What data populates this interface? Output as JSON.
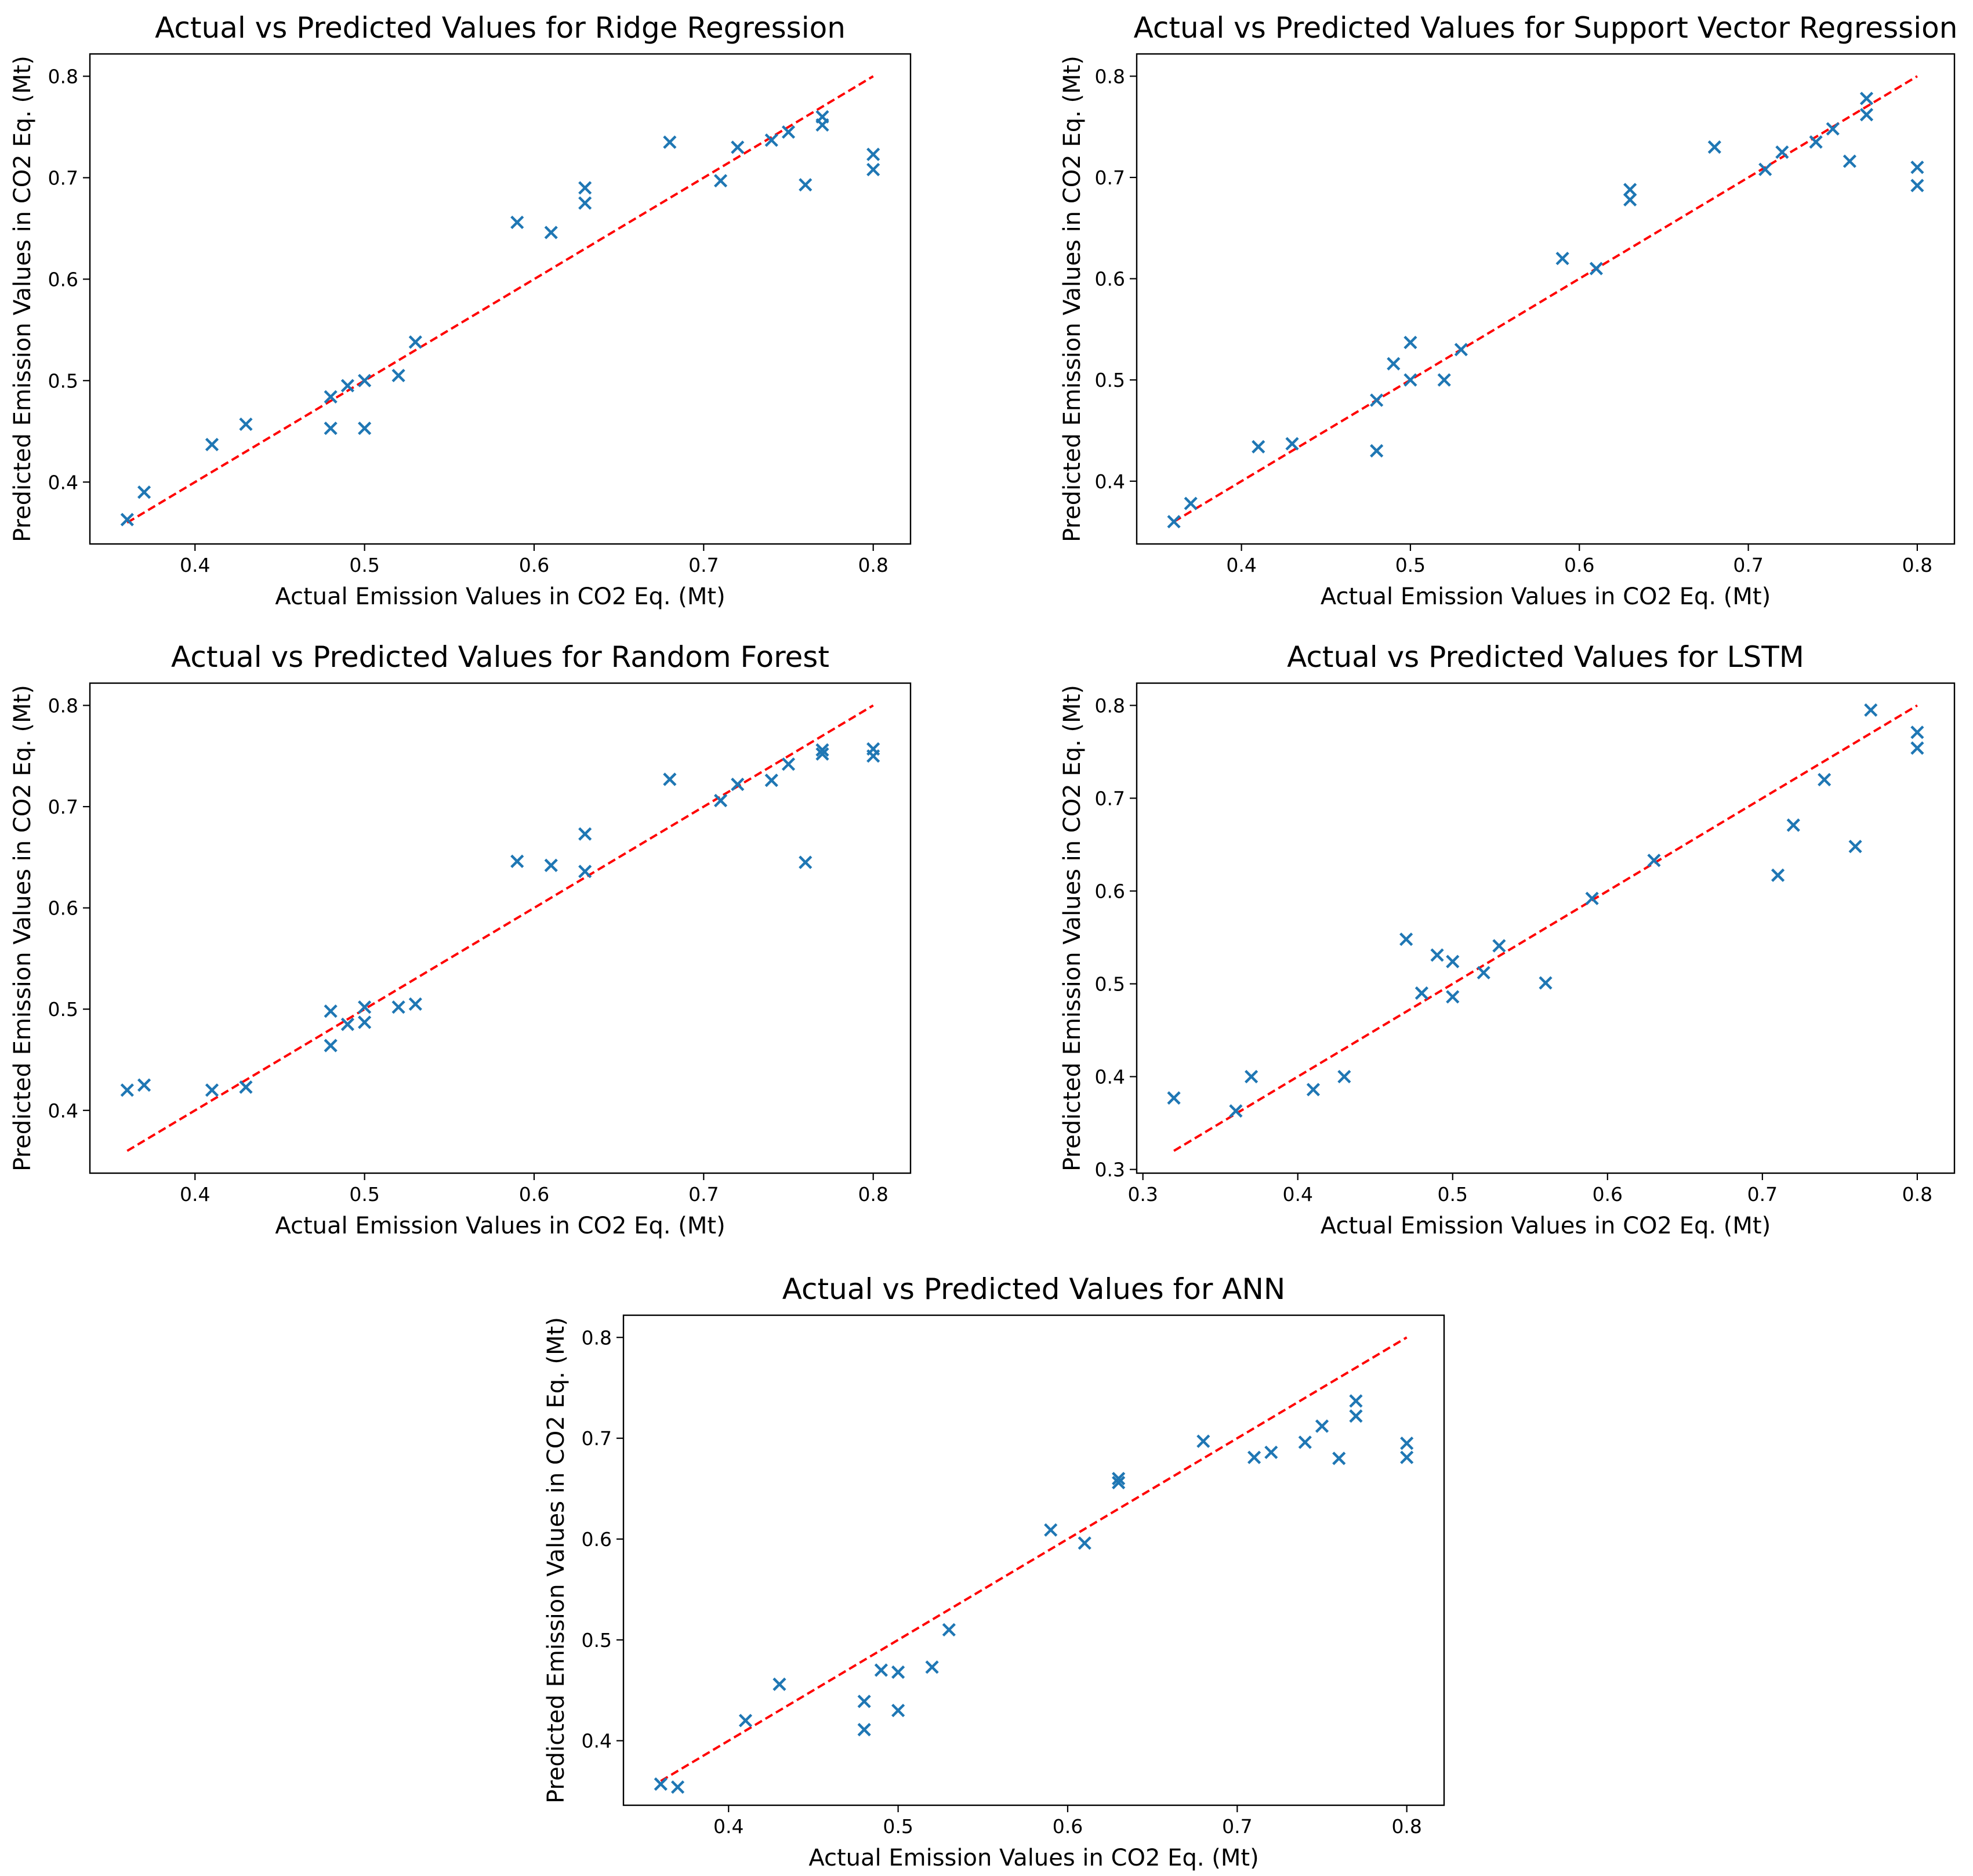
{
  "colors": {
    "marker": "#1f77b4",
    "reference_line": "#ff0000"
  },
  "chart_data": [
    {
      "type": "scatter",
      "title": "Actual vs Predicted Values for Ridge Regression",
      "xlabel": "Actual Emission Values in CO2 Eq. (Mt)",
      "ylabel": "Predicted Emission Values in CO2 Eq. (Mt)",
      "xlim": [
        0.338,
        0.822
      ],
      "ylim": [
        0.339,
        0.822
      ],
      "xticks": [
        0.4,
        0.5,
        0.6,
        0.7,
        0.8
      ],
      "xtick_labels": [
        "0.4",
        "0.5",
        "0.6",
        "0.7",
        "0.8"
      ],
      "yticks": [
        0.4,
        0.5,
        0.6,
        0.7,
        0.8
      ],
      "ytick_labels": [
        "0.4",
        "0.5",
        "0.6",
        "0.7",
        "0.8"
      ],
      "reference_line": [
        [
          0.36,
          0.36
        ],
        [
          0.8,
          0.8
        ]
      ],
      "points": [
        [
          0.36,
          0.363
        ],
        [
          0.37,
          0.39
        ],
        [
          0.41,
          0.437
        ],
        [
          0.43,
          0.457
        ],
        [
          0.48,
          0.484
        ],
        [
          0.48,
          0.453
        ],
        [
          0.49,
          0.495
        ],
        [
          0.5,
          0.5
        ],
        [
          0.5,
          0.453
        ],
        [
          0.52,
          0.505
        ],
        [
          0.53,
          0.538
        ],
        [
          0.59,
          0.656
        ],
        [
          0.61,
          0.646
        ],
        [
          0.63,
          0.69
        ],
        [
          0.63,
          0.675
        ],
        [
          0.68,
          0.735
        ],
        [
          0.71,
          0.697
        ],
        [
          0.72,
          0.73
        ],
        [
          0.74,
          0.737
        ],
        [
          0.75,
          0.745
        ],
        [
          0.76,
          0.693
        ],
        [
          0.77,
          0.76
        ],
        [
          0.77,
          0.752
        ],
        [
          0.8,
          0.723
        ],
        [
          0.8,
          0.708
        ]
      ]
    },
    {
      "type": "scatter",
      "title": "Actual vs Predicted Values for Support Vector Regression",
      "xlabel": "Actual Emission Values in CO2 Eq. (Mt)",
      "ylabel": "Predicted Emission Values in CO2 Eq. (Mt)",
      "xlim": [
        0.338,
        0.822
      ],
      "ylim": [
        0.338,
        0.822
      ],
      "xticks": [
        0.4,
        0.5,
        0.6,
        0.7,
        0.8
      ],
      "xtick_labels": [
        "0.4",
        "0.5",
        "0.6",
        "0.7",
        "0.8"
      ],
      "yticks": [
        0.4,
        0.5,
        0.6,
        0.7,
        0.8
      ],
      "ytick_labels": [
        "0.4",
        "0.5",
        "0.6",
        "0.7",
        "0.8"
      ],
      "reference_line": [
        [
          0.36,
          0.36
        ],
        [
          0.8,
          0.8
        ]
      ],
      "points": [
        [
          0.36,
          0.36
        ],
        [
          0.37,
          0.378
        ],
        [
          0.41,
          0.434
        ],
        [
          0.43,
          0.437
        ],
        [
          0.48,
          0.48
        ],
        [
          0.48,
          0.43
        ],
        [
          0.49,
          0.516
        ],
        [
          0.5,
          0.537
        ],
        [
          0.5,
          0.5
        ],
        [
          0.52,
          0.5
        ],
        [
          0.53,
          0.53
        ],
        [
          0.59,
          0.62
        ],
        [
          0.61,
          0.61
        ],
        [
          0.63,
          0.688
        ],
        [
          0.63,
          0.678
        ],
        [
          0.68,
          0.73
        ],
        [
          0.71,
          0.708
        ],
        [
          0.72,
          0.725
        ],
        [
          0.74,
          0.735
        ],
        [
          0.75,
          0.748
        ],
        [
          0.76,
          0.716
        ],
        [
          0.77,
          0.778
        ],
        [
          0.77,
          0.762
        ],
        [
          0.8,
          0.71
        ],
        [
          0.8,
          0.692
        ]
      ]
    },
    {
      "type": "scatter",
      "title": "Actual vs Predicted Values for Random Forest",
      "xlabel": "Actual Emission Values in CO2 Eq. (Mt)",
      "ylabel": "Predicted Emission Values in CO2 Eq. (Mt)",
      "xlim": [
        0.338,
        0.822
      ],
      "ylim": [
        0.338,
        0.822
      ],
      "xticks": [
        0.4,
        0.5,
        0.6,
        0.7,
        0.8
      ],
      "xtick_labels": [
        "0.4",
        "0.5",
        "0.6",
        "0.7",
        "0.8"
      ],
      "yticks": [
        0.4,
        0.5,
        0.6,
        0.7,
        0.8
      ],
      "ytick_labels": [
        "0.4",
        "0.5",
        "0.6",
        "0.7",
        "0.8"
      ],
      "reference_line": [
        [
          0.36,
          0.36
        ],
        [
          0.8,
          0.8
        ]
      ],
      "points": [
        [
          0.36,
          0.42
        ],
        [
          0.37,
          0.425
        ],
        [
          0.41,
          0.42
        ],
        [
          0.43,
          0.423
        ],
        [
          0.48,
          0.498
        ],
        [
          0.48,
          0.464
        ],
        [
          0.49,
          0.485
        ],
        [
          0.5,
          0.502
        ],
        [
          0.5,
          0.487
        ],
        [
          0.52,
          0.502
        ],
        [
          0.53,
          0.505
        ],
        [
          0.59,
          0.646
        ],
        [
          0.61,
          0.642
        ],
        [
          0.63,
          0.673
        ],
        [
          0.63,
          0.636
        ],
        [
          0.68,
          0.727
        ],
        [
          0.71,
          0.706
        ],
        [
          0.72,
          0.722
        ],
        [
          0.74,
          0.726
        ],
        [
          0.75,
          0.742
        ],
        [
          0.76,
          0.645
        ],
        [
          0.77,
          0.756
        ],
        [
          0.77,
          0.752
        ],
        [
          0.8,
          0.757
        ],
        [
          0.8,
          0.75
        ]
      ]
    },
    {
      "type": "scatter",
      "title": "Actual vs Predicted Values for LSTM",
      "xlabel": "Actual Emission Values in CO2 Eq. (Mt)",
      "ylabel": "Predicted Emission Values in CO2 Eq. (Mt)",
      "xlim": [
        0.296,
        0.824
      ],
      "ylim": [
        0.296,
        0.824
      ],
      "xticks": [
        0.3,
        0.4,
        0.5,
        0.6,
        0.7,
        0.8
      ],
      "xtick_labels": [
        "0.3",
        "0.4",
        "0.5",
        "0.6",
        "0.7",
        "0.8"
      ],
      "yticks": [
        0.3,
        0.4,
        0.5,
        0.6,
        0.7,
        0.8
      ],
      "ytick_labels": [
        "0.3",
        "0.4",
        "0.5",
        "0.6",
        "0.7",
        "0.8"
      ],
      "reference_line": [
        [
          0.32,
          0.32
        ],
        [
          0.8,
          0.8
        ]
      ],
      "points": [
        [
          0.32,
          0.377
        ],
        [
          0.36,
          0.363
        ],
        [
          0.37,
          0.4
        ],
        [
          0.41,
          0.386
        ],
        [
          0.43,
          0.4
        ],
        [
          0.47,
          0.548
        ],
        [
          0.48,
          0.49
        ],
        [
          0.49,
          0.531
        ],
        [
          0.5,
          0.524
        ],
        [
          0.5,
          0.486
        ],
        [
          0.52,
          0.512
        ],
        [
          0.53,
          0.541
        ],
        [
          0.56,
          0.501
        ],
        [
          0.59,
          0.592
        ],
        [
          0.63,
          0.633
        ],
        [
          0.71,
          0.617
        ],
        [
          0.72,
          0.671
        ],
        [
          0.74,
          0.72
        ],
        [
          0.76,
          0.648
        ],
        [
          0.77,
          0.795
        ],
        [
          0.8,
          0.771
        ],
        [
          0.8,
          0.754
        ]
      ]
    },
    {
      "type": "scatter",
      "title": "Actual vs Predicted Values for ANN",
      "xlabel": "Actual Emission Values in CO2 Eq. (Mt)",
      "ylabel": "Predicted Emission Values in CO2 Eq. (Mt)",
      "xlim": [
        0.338,
        0.822
      ],
      "ylim": [
        0.336,
        0.822
      ],
      "xticks": [
        0.4,
        0.5,
        0.6,
        0.7,
        0.8
      ],
      "xtick_labels": [
        "0.4",
        "0.5",
        "0.6",
        "0.7",
        "0.8"
      ],
      "yticks": [
        0.4,
        0.5,
        0.6,
        0.7,
        0.8
      ],
      "ytick_labels": [
        "0.4",
        "0.5",
        "0.6",
        "0.7",
        "0.8"
      ],
      "reference_line": [
        [
          0.36,
          0.36
        ],
        [
          0.8,
          0.8
        ]
      ],
      "points": [
        [
          0.36,
          0.357
        ],
        [
          0.37,
          0.354
        ],
        [
          0.41,
          0.42
        ],
        [
          0.43,
          0.456
        ],
        [
          0.48,
          0.439
        ],
        [
          0.48,
          0.411
        ],
        [
          0.49,
          0.47
        ],
        [
          0.5,
          0.468
        ],
        [
          0.5,
          0.43
        ],
        [
          0.52,
          0.473
        ],
        [
          0.53,
          0.51
        ],
        [
          0.59,
          0.609
        ],
        [
          0.61,
          0.596
        ],
        [
          0.63,
          0.66
        ],
        [
          0.63,
          0.656
        ],
        [
          0.68,
          0.697
        ],
        [
          0.71,
          0.681
        ],
        [
          0.72,
          0.686
        ],
        [
          0.74,
          0.696
        ],
        [
          0.75,
          0.712
        ],
        [
          0.76,
          0.68
        ],
        [
          0.77,
          0.737
        ],
        [
          0.77,
          0.722
        ],
        [
          0.8,
          0.695
        ],
        [
          0.8,
          0.681
        ]
      ]
    }
  ]
}
